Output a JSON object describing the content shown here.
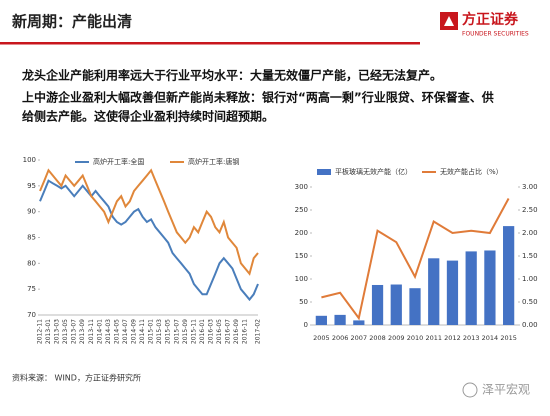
{
  "header": {
    "title": "新周期：产能出清",
    "logo": "方正证券",
    "logo_en": "FOUNDER SECURITIES"
  },
  "paragraphs": [
    "龙头企业产能利用率远大于行业平均水平：大量无效僵尸产能，已经无法复产。",
    "上中游企业盈利大幅改善但新产能尚未释放：银行对“两高一剩”行业限贷、环保督查、供",
    "给侧去产能。这使得企业盈利持续时间超预期。"
  ],
  "chart_data": [
    {
      "type": "line",
      "categories": [
        "2012-11",
        null,
        "2013-01",
        null,
        "2013-03",
        null,
        "2013-05",
        null,
        "2013-07",
        null,
        "2013-09",
        null,
        "2013-11",
        null,
        "2014-01",
        null,
        "2014-03",
        null,
        "2014-05",
        null,
        "2014-07",
        null,
        "2014-09",
        null,
        "2014-11",
        null,
        "2015-01",
        null,
        "2015-03",
        null,
        "2015-05",
        null,
        "2015-07",
        null,
        "2015-09",
        null,
        "2015-11",
        null,
        "2016-01",
        null,
        "2016-03",
        null,
        "2016-05",
        null,
        "2016-07",
        null,
        "2016-09",
        null,
        "2016-11",
        null,
        null,
        "2017-02"
      ],
      "series": [
        {
          "name": "高炉开工率:全国",
          "color": "#4a7ebb",
          "values": [
            92,
            94,
            96,
            95.5,
            95,
            94.5,
            95,
            94,
            93,
            94,
            95,
            94,
            93,
            94,
            93,
            92,
            91,
            89,
            88,
            87.5,
            88,
            89,
            90,
            90.5,
            89,
            88,
            88.5,
            87,
            86,
            85,
            84,
            82,
            81,
            80,
            79,
            78,
            76,
            75,
            74,
            74,
            76,
            78,
            80,
            81,
            80,
            79,
            77,
            75,
            74,
            73,
            74,
            76
          ]
        },
        {
          "name": "高炉开工率:唐钢",
          "color": "#e0873a",
          "values": [
            94,
            96,
            98,
            97,
            96,
            95,
            97,
            96,
            95,
            96,
            97,
            95,
            93,
            92,
            91,
            90,
            88,
            90,
            92,
            93,
            91,
            92,
            94,
            95,
            96,
            97,
            98,
            96,
            94,
            92,
            90,
            88,
            86,
            85,
            84,
            85,
            87,
            86,
            88,
            90,
            89,
            87,
            86,
            88,
            85,
            84,
            83,
            80,
            79,
            78,
            81,
            82
          ]
        }
      ],
      "ylim": [
        70,
        100
      ],
      "yticks": [
        70,
        75,
        80,
        85,
        90,
        95,
        100
      ]
    },
    {
      "type": "bar",
      "categories": [
        "2005",
        "2006",
        "2007",
        "2008",
        "2009",
        "2010",
        "2011",
        "2012",
        "2013",
        "2014",
        "2015"
      ],
      "series": [
        {
          "name": "平板玻璃无效产能（亿）",
          "color": "#4472c4",
          "values": [
            20,
            22,
            10,
            87,
            88,
            80,
            145,
            140,
            160,
            162,
            215
          ]
        },
        {
          "name": "无效产能占比（%）",
          "color": "#e07b39",
          "axis": "y2",
          "values": [
            0.6,
            0.7,
            0.15,
            2.05,
            1.8,
            1.05,
            2.25,
            2.0,
            2.05,
            2.0,
            2.75
          ]
        }
      ],
      "ylim": [
        0,
        300
      ],
      "yticks": [
        0,
        50,
        100,
        150,
        200,
        250,
        300
      ],
      "y2lim": [
        0,
        3
      ],
      "y2ticks": [
        {
          "value": 0,
          "label": "0.00"
        },
        {
          "value": 0.5,
          "label": "0.50"
        },
        {
          "value": 1,
          "label": "1.00"
        },
        {
          "value": 1.5,
          "label": "1.50"
        },
        {
          "value": 2,
          "label": "2.00"
        },
        {
          "value": 2.5,
          "label": "2.50"
        },
        {
          "value": 3,
          "label": "3.00"
        }
      ]
    }
  ],
  "source": "资料来源： WIND，方正证券研究所",
  "watermark": "泽平宏观"
}
